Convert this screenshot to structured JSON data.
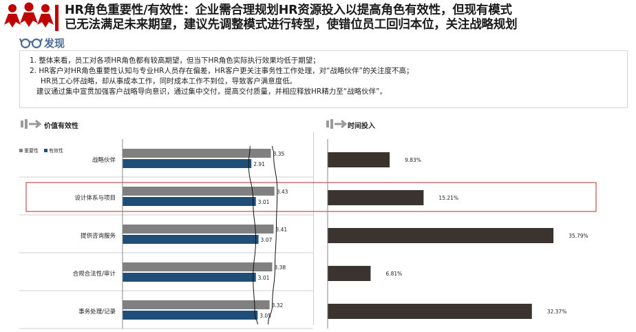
{
  "header": {
    "title_line1": "HR角色重要性/有效性：企业需合理规划HR资源投入以提高角色有效性，但现有模式",
    "title_line2": "已无法满足未来期望，建议先调整模式进行转型，使错位员工回归本位，关注战略规划"
  },
  "findings": {
    "label": "发现",
    "lines": [
      "1. 整体来看，员工对各项HR角色都有较高期望，但当下HR角色实际执行效果均低于期望；",
      "2. HR客户对HR角色重要性认知与专业HR人员存在偏差，HR客户更关注事务性工作处理，对“战略伙伴”的关注度不高；",
      "HR员工心怀战略，却从事成本工作，同时成本工作不到位，导致客户满意度低。",
      "建议通过集中宣贯加强客户战略导向意识，通过集中交付，提高交付质量，并相应释放HR精力至“战略伙伴”。"
    ]
  },
  "colors": {
    "accent": "#c00000",
    "importance": "#808080",
    "effectiveness": "#1f4e79",
    "time": "#3b3330",
    "highlight": "#c0504d"
  },
  "chart_data": [
    {
      "type": "bar",
      "title": "价值有效性",
      "categories": [
        "战略伙伴",
        "设计体系与项目",
        "提供咨询服务",
        "合规合法性/审计",
        "事务处理/记录"
      ],
      "series": [
        {
          "name": "重要性",
          "values": [
            3.35,
            3.43,
            3.41,
            3.38,
            3.32
          ]
        },
        {
          "name": "有效性",
          "values": [
            2.91,
            3.01,
            3.07,
            3.01,
            3.05
          ]
        }
      ],
      "highlight_category": "设计体系与项目",
      "legend": "top-left",
      "grid": false
    },
    {
      "type": "bar",
      "title": "时间投入",
      "categories": [
        "战略伙伴",
        "设计体系与项目",
        "提供咨询服务",
        "合规合法性/审计",
        "事务处理/记录"
      ],
      "values": [
        9.83,
        15.21,
        35.79,
        6.81,
        32.37
      ],
      "value_labels": [
        "9.83%",
        "15.21%",
        "35.79%",
        "6.81%",
        "32.37%"
      ],
      "grid": false
    }
  ]
}
